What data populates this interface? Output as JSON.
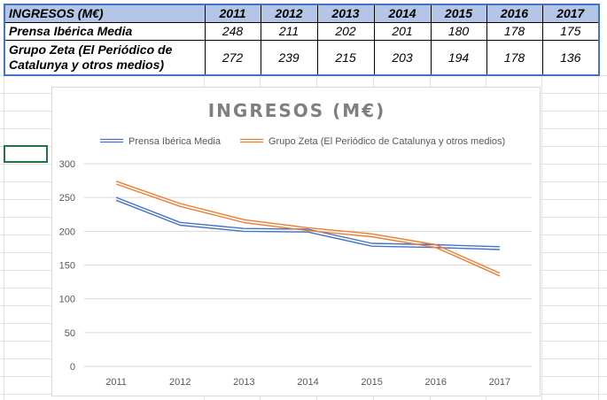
{
  "table": {
    "header_label": "INGRESOS (M€)",
    "years": [
      "2011",
      "2012",
      "2013",
      "2014",
      "2015",
      "2016",
      "2017"
    ],
    "rows": [
      {
        "label": "Prensa Ibérica Media",
        "values": [
          "248",
          "211",
          "202",
          "201",
          "180",
          "178",
          "175"
        ]
      },
      {
        "label": "Grupo Zeta (El Periódico de Catalunya y otros medios)",
        "values": [
          "272",
          "239",
          "215",
          "203",
          "194",
          "178",
          "136"
        ]
      }
    ]
  },
  "colors": {
    "header_fill": "#b4c6e7",
    "table_border": "#4472c4",
    "series_1": "#4472c4",
    "series_2": "#ed7d31",
    "gridline": "#d9d9d9",
    "selection": "#217346"
  },
  "chart_data": {
    "type": "line",
    "title": "INGRESOS (M€)",
    "x": [
      "2011",
      "2012",
      "2013",
      "2014",
      "2015",
      "2016",
      "2017"
    ],
    "series": [
      {
        "name": "Prensa Ibérica Media",
        "values": [
          248,
          211,
          202,
          201,
          180,
          178,
          175
        ]
      },
      {
        "name": "Grupo Zeta (El Periódico de Catalunya y otros medios)",
        "values": [
          272,
          239,
          215,
          203,
          194,
          178,
          136
        ]
      }
    ],
    "ylim": [
      0,
      300
    ],
    "yticks": [
      0,
      50,
      100,
      150,
      200,
      250,
      300
    ],
    "grid": true,
    "legend": "top",
    "line_style": "double"
  }
}
